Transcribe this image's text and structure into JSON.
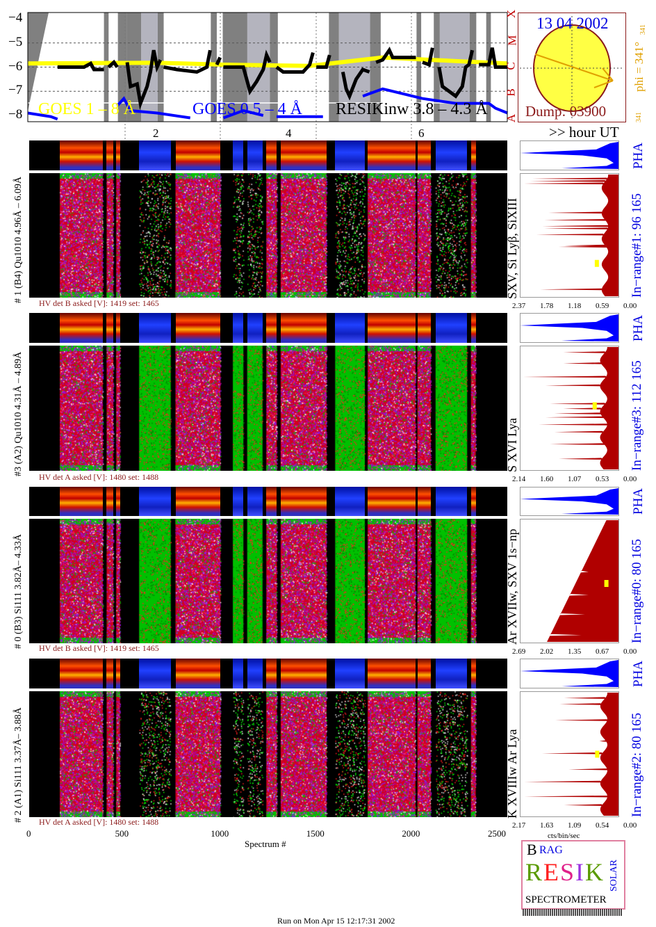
{
  "chart_data": [
    {
      "type": "line",
      "name_hidden": "",
      "yscale": "log",
      "ylim": [
        -8.2,
        -3.8
      ],
      "xlim": [
        0.05,
        7.28
      ],
      "yticks": [
        "-4",
        "-5",
        "-6",
        "-7",
        "-8"
      ],
      "xticks": [
        "2",
        "4",
        "6"
      ],
      "xlabel": ">> hour UT",
      "flare_classes": [
        "X",
        "M",
        "C",
        "B",
        "A"
      ],
      "legend": [
        {
          "label": "GOES 1 – 8 Å",
          "color": "#ffff00"
        },
        {
          "label": "GOES 0.5 – 4 Å",
          "color": "#0000ff"
        },
        {
          "label": "RESIKinw 3.8 – 4.3 Å",
          "color": "#000000"
        }
      ],
      "bands": {
        "dark": [
          [
            1.2,
            1.27
          ],
          [
            1.41,
            1.54
          ],
          [
            1.54,
            1.76
          ],
          [
            2.01,
            2.1
          ],
          [
            2.81,
            2.9
          ],
          [
            2.99,
            3.36
          ],
          [
            3.7,
            3.82
          ],
          [
            4.59,
            4.74
          ],
          [
            5.21,
            5.37
          ],
          [
            5.91,
            5.98
          ],
          [
            6.17,
            6.26
          ],
          [
            6.71,
            6.81
          ],
          [
            6.96,
            7.03
          ]
        ],
        "light": [
          [
            1.76,
            2.01
          ],
          [
            3.36,
            3.7
          ],
          [
            4.74,
            5.21
          ],
          [
            6.26,
            6.71
          ]
        ]
      },
      "series": [
        {
          "name": "GOES 1 – 8 Å",
          "color": "#ffff00",
          "segments": [
            [
              [
                0.05,
                -5.85
              ],
              [
                2,
                -5.82
              ],
              [
                3,
                -5.9
              ],
              [
                4.3,
                -5.95
              ],
              [
                5.4,
                -5.6
              ],
              [
                6.5,
                -5.75
              ],
              [
                7.28,
                -5.85
              ]
            ]
          ]
        },
        {
          "name": "GOES 0.5 – 4 Å",
          "color": "#0000ff",
          "segments": [
            [
              [
                0.05,
                -7.9
              ],
              [
                0.4,
                -8.05
              ],
              [
                0.5,
                -8.15
              ]
            ],
            [
              [
                1.4,
                -7.6
              ],
              [
                1.5,
                -7.3
              ],
              [
                1.6,
                -7.8
              ],
              [
                2.0,
                -7.9
              ],
              [
                2.5,
                -8.1
              ]
            ],
            [
              [
                3.0,
                -8.1
              ],
              [
                3.3,
                -7.8
              ],
              [
                3.6,
                -8.0
              ]
            ],
            [
              [
                3.8,
                -8.05
              ],
              [
                4.5,
                -8.05
              ]
            ],
            [
              [
                5.1,
                -7.2
              ],
              [
                5.4,
                -6.9
              ],
              [
                6.0,
                -7.3
              ],
              [
                6.5,
                -7.5
              ],
              [
                7.0,
                -7.5
              ],
              [
                7.1,
                -7.7
              ],
              [
                7.28,
                -7.9
              ]
            ]
          ]
        },
        {
          "name": "RESIKinw 3.8 – 4.3 Å",
          "color": "#000000",
          "segments": [
            [
              [
                0.5,
                -6
              ],
              [
                0.9,
                -6
              ],
              [
                1.0,
                -5.85
              ],
              [
                1.05,
                -6.1
              ],
              [
                1.2,
                -6.1
              ]
            ],
            [
              [
                1.27,
                -6
              ],
              [
                1.35,
                -5.8
              ],
              [
                1.4,
                -6.0
              ]
            ],
            [
              [
                1.55,
                -5.8
              ],
              [
                1.6,
                -6.8
              ],
              [
                1.7,
                -6.7
              ],
              [
                1.75,
                -7.5
              ],
              [
                1.85,
                -6.8
              ],
              [
                1.9,
                -6.2
              ],
              [
                1.95,
                -5.3
              ],
              [
                2.0,
                -6.0
              ],
              [
                2.05,
                -5.7
              ]
            ],
            [
              [
                2.1,
                -6
              ],
              [
                2.3,
                -6.1
              ],
              [
                2.6,
                -6.2
              ],
              [
                2.75,
                -6.0
              ],
              [
                2.8,
                -5.3
              ]
            ],
            [
              [
                2.9,
                -5.9
              ],
              [
                2.95,
                -5.6
              ]
            ],
            [
              [
                3.0,
                -6.0
              ],
              [
                3.3,
                -6.0
              ],
              [
                3.4,
                -7.0
              ],
              [
                3.5,
                -6.6
              ],
              [
                3.6,
                -6.1
              ],
              [
                3.65,
                -5.5
              ],
              [
                3.7,
                -5.8
              ]
            ],
            [
              [
                3.8,
                -6.0
              ],
              [
                3.9,
                -6.2
              ],
              [
                4.2,
                -6.2
              ],
              [
                4.3,
                -5.9
              ],
              [
                4.35,
                -5.4
              ]
            ],
            [
              [
                4.4,
                -6
              ],
              [
                4.55,
                -6.0
              ],
              [
                4.6,
                -5.5
              ]
            ],
            [
              [
                4.8,
                -6.2
              ],
              [
                4.85,
                -6.9
              ],
              [
                4.9,
                -7.2
              ],
              [
                5.0,
                -6.5
              ],
              [
                5.1,
                -6.1
              ],
              [
                5.2,
                -6.2
              ]
            ],
            [
              [
                5.3,
                -5.8
              ],
              [
                5.4,
                -5.7
              ],
              [
                5.5,
                -5.3
              ],
              [
                5.55,
                -5.6
              ],
              [
                5.9,
                -5.6
              ]
            ],
            [
              [
                6.0,
                -5.8
              ],
              [
                6.1,
                -5.9
              ],
              [
                6.15,
                -5.2
              ]
            ],
            [
              [
                6.25,
                -6.0
              ],
              [
                6.3,
                -6.8
              ],
              [
                6.5,
                -7.2
              ],
              [
                6.6,
                -6.8
              ],
              [
                6.65,
                -6.0
              ],
              [
                6.7,
                -5.9
              ],
              [
                6.75,
                -5.3
              ]
            ],
            [
              [
                6.85,
                -5.9
              ],
              [
                7.0,
                -5.9
              ],
              [
                7.05,
                -5.2
              ],
              [
                7.1,
                -6.0
              ],
              [
                7.28,
                -6.0
              ]
            ]
          ]
        }
      ]
    },
    {
      "type": "heatmap",
      "xlabel": "Spectrum #",
      "xlim": [
        0,
        2500
      ],
      "xticks": [
        "0",
        "500",
        "1000",
        "1500",
        "2000",
        "2500"
      ],
      "segments": [
        [
          160,
          385,
          "active"
        ],
        [
          405,
          440,
          "active"
        ],
        [
          455,
          475,
          "active"
        ],
        [
          575,
          740,
          "quiet"
        ],
        [
          765,
          1000,
          "active"
        ],
        [
          1065,
          1120,
          "quiet"
        ],
        [
          1140,
          1220,
          "quiet"
        ],
        [
          1240,
          1295,
          "active"
        ],
        [
          1315,
          1555,
          "active"
        ],
        [
          1600,
          1755,
          "quiet"
        ],
        [
          1770,
          2020,
          "active"
        ],
        [
          2030,
          2100,
          "active"
        ],
        [
          2125,
          2290,
          "quiet"
        ],
        [
          2310,
          2335,
          "active"
        ]
      ]
    }
  ],
  "sun": {
    "date": "13 04 2002",
    "dump": "Dump: 03900",
    "phi": "phi = 341°",
    "phi_small_top": "341",
    "phi_small_bottom": "341",
    "disk_color": "#ffff44",
    "rim_color": "#8b1a1a",
    "arrow_color": "#e0a000"
  },
  "panels": [
    {
      "title": "# 1 (B4) Qu1010 4.96Å – 6.09Å",
      "hv": "HV det B asked [V]:  1419 set:  1465",
      "quiet_style": "dark",
      "lines": "SXV, Si Lyβ, SiXIII",
      "range": "In−range#1:  96 165",
      "pha": "PHA",
      "ticks": [
        "2.37",
        "1.78",
        "1.18",
        "0.59",
        "0.00"
      ],
      "max": 2.37,
      "ramp": false,
      "spikes": [
        [
          5,
          1.9
        ],
        [
          40,
          1.45
        ],
        [
          41,
          1.3
        ],
        [
          50,
          2.0
        ],
        [
          55,
          1.8
        ],
        [
          57,
          1.85
        ],
        [
          62,
          1.8
        ],
        [
          68,
          1.7
        ],
        [
          92,
          2.3
        ],
        [
          94,
          2.2
        ],
        [
          96,
          2.1
        ]
      ],
      "marker": [
        27,
        0.5
      ]
    },
    {
      "title": "#3 (A2) Qu1010  4.31Å – 4.89Å",
      "hv": "HV det A asked [V]:  1480 set:  1488",
      "quiet_style": "green",
      "lines": "S XVI Lya",
      "range": "In−range#3:  112 165",
      "pha": "PHA",
      "ticks": [
        "2.14",
        "1.60",
        "1.07",
        "0.53",
        "0.00"
      ],
      "max": 2.14,
      "ramp": false,
      "spikes": [
        [
          8,
          1.3
        ],
        [
          20,
          1.5
        ],
        [
          30,
          1.4
        ],
        [
          36,
          1.75
        ],
        [
          42,
          1.6
        ],
        [
          45,
          1.4
        ],
        [
          49,
          1.2
        ],
        [
          53,
          1.5
        ],
        [
          68,
          1.6
        ],
        [
          75,
          2.1
        ],
        [
          86,
          1.2
        ],
        [
          95,
          1.2
        ]
      ],
      "marker": [
        52,
        0.5
      ]
    },
    {
      "title": "# 0 (B3) Si111  3.82Å– 4.33Å",
      "hv": "HV det B asked [V]:  1419 set:  1465",
      "quiet_style": "green",
      "lines": "Ar XVIIw, SXV 1s−np",
      "range": "In−range#0:  80 165",
      "pha": "PHA",
      "ticks": [
        "2.69",
        "2.02",
        "1.35",
        "0.67",
        "0.00"
      ],
      "max": 2.69,
      "ramp": true,
      "spikes": [
        [
          5,
          1.0
        ],
        [
          22,
          0.9
        ],
        [
          38,
          0.8
        ],
        [
          57,
          0.8
        ],
        [
          75,
          0.7
        ]
      ],
      "marker": [
        48,
        0.3
      ]
    },
    {
      "title": "# 2 (A1) Si111  3.37Å– 3.88Å",
      "hv": "HV det A asked [V]:  1480 set:  1488",
      "quiet_style": "dark",
      "lines": "K XVIIIw  Ar Lya",
      "range": "In−range#2:  80 165",
      "pha": "PHA",
      "ticks": [
        "2.17",
        "1.63",
        "1.09",
        "0.54",
        "0.00"
      ],
      "max": 2.17,
      "ramp": false,
      "spikes": [
        [
          8,
          1.2
        ],
        [
          15,
          2.1
        ],
        [
          27,
          2.1
        ],
        [
          37,
          1.1
        ],
        [
          50,
          1.7
        ],
        [
          60,
          0.4
        ],
        [
          77,
          1.4
        ],
        [
          90,
          1.3
        ],
        [
          95,
          1.2
        ]
      ],
      "marker": [
        50,
        0.45
      ]
    }
  ],
  "right_axis_label": "cts/bin/sec",
  "logo": {
    "letters": "BRAG RESIK SOLAR",
    "bottom": "SPECTROMETER"
  },
  "footer": "Run on Mon Apr 15 12:17:31 2002"
}
